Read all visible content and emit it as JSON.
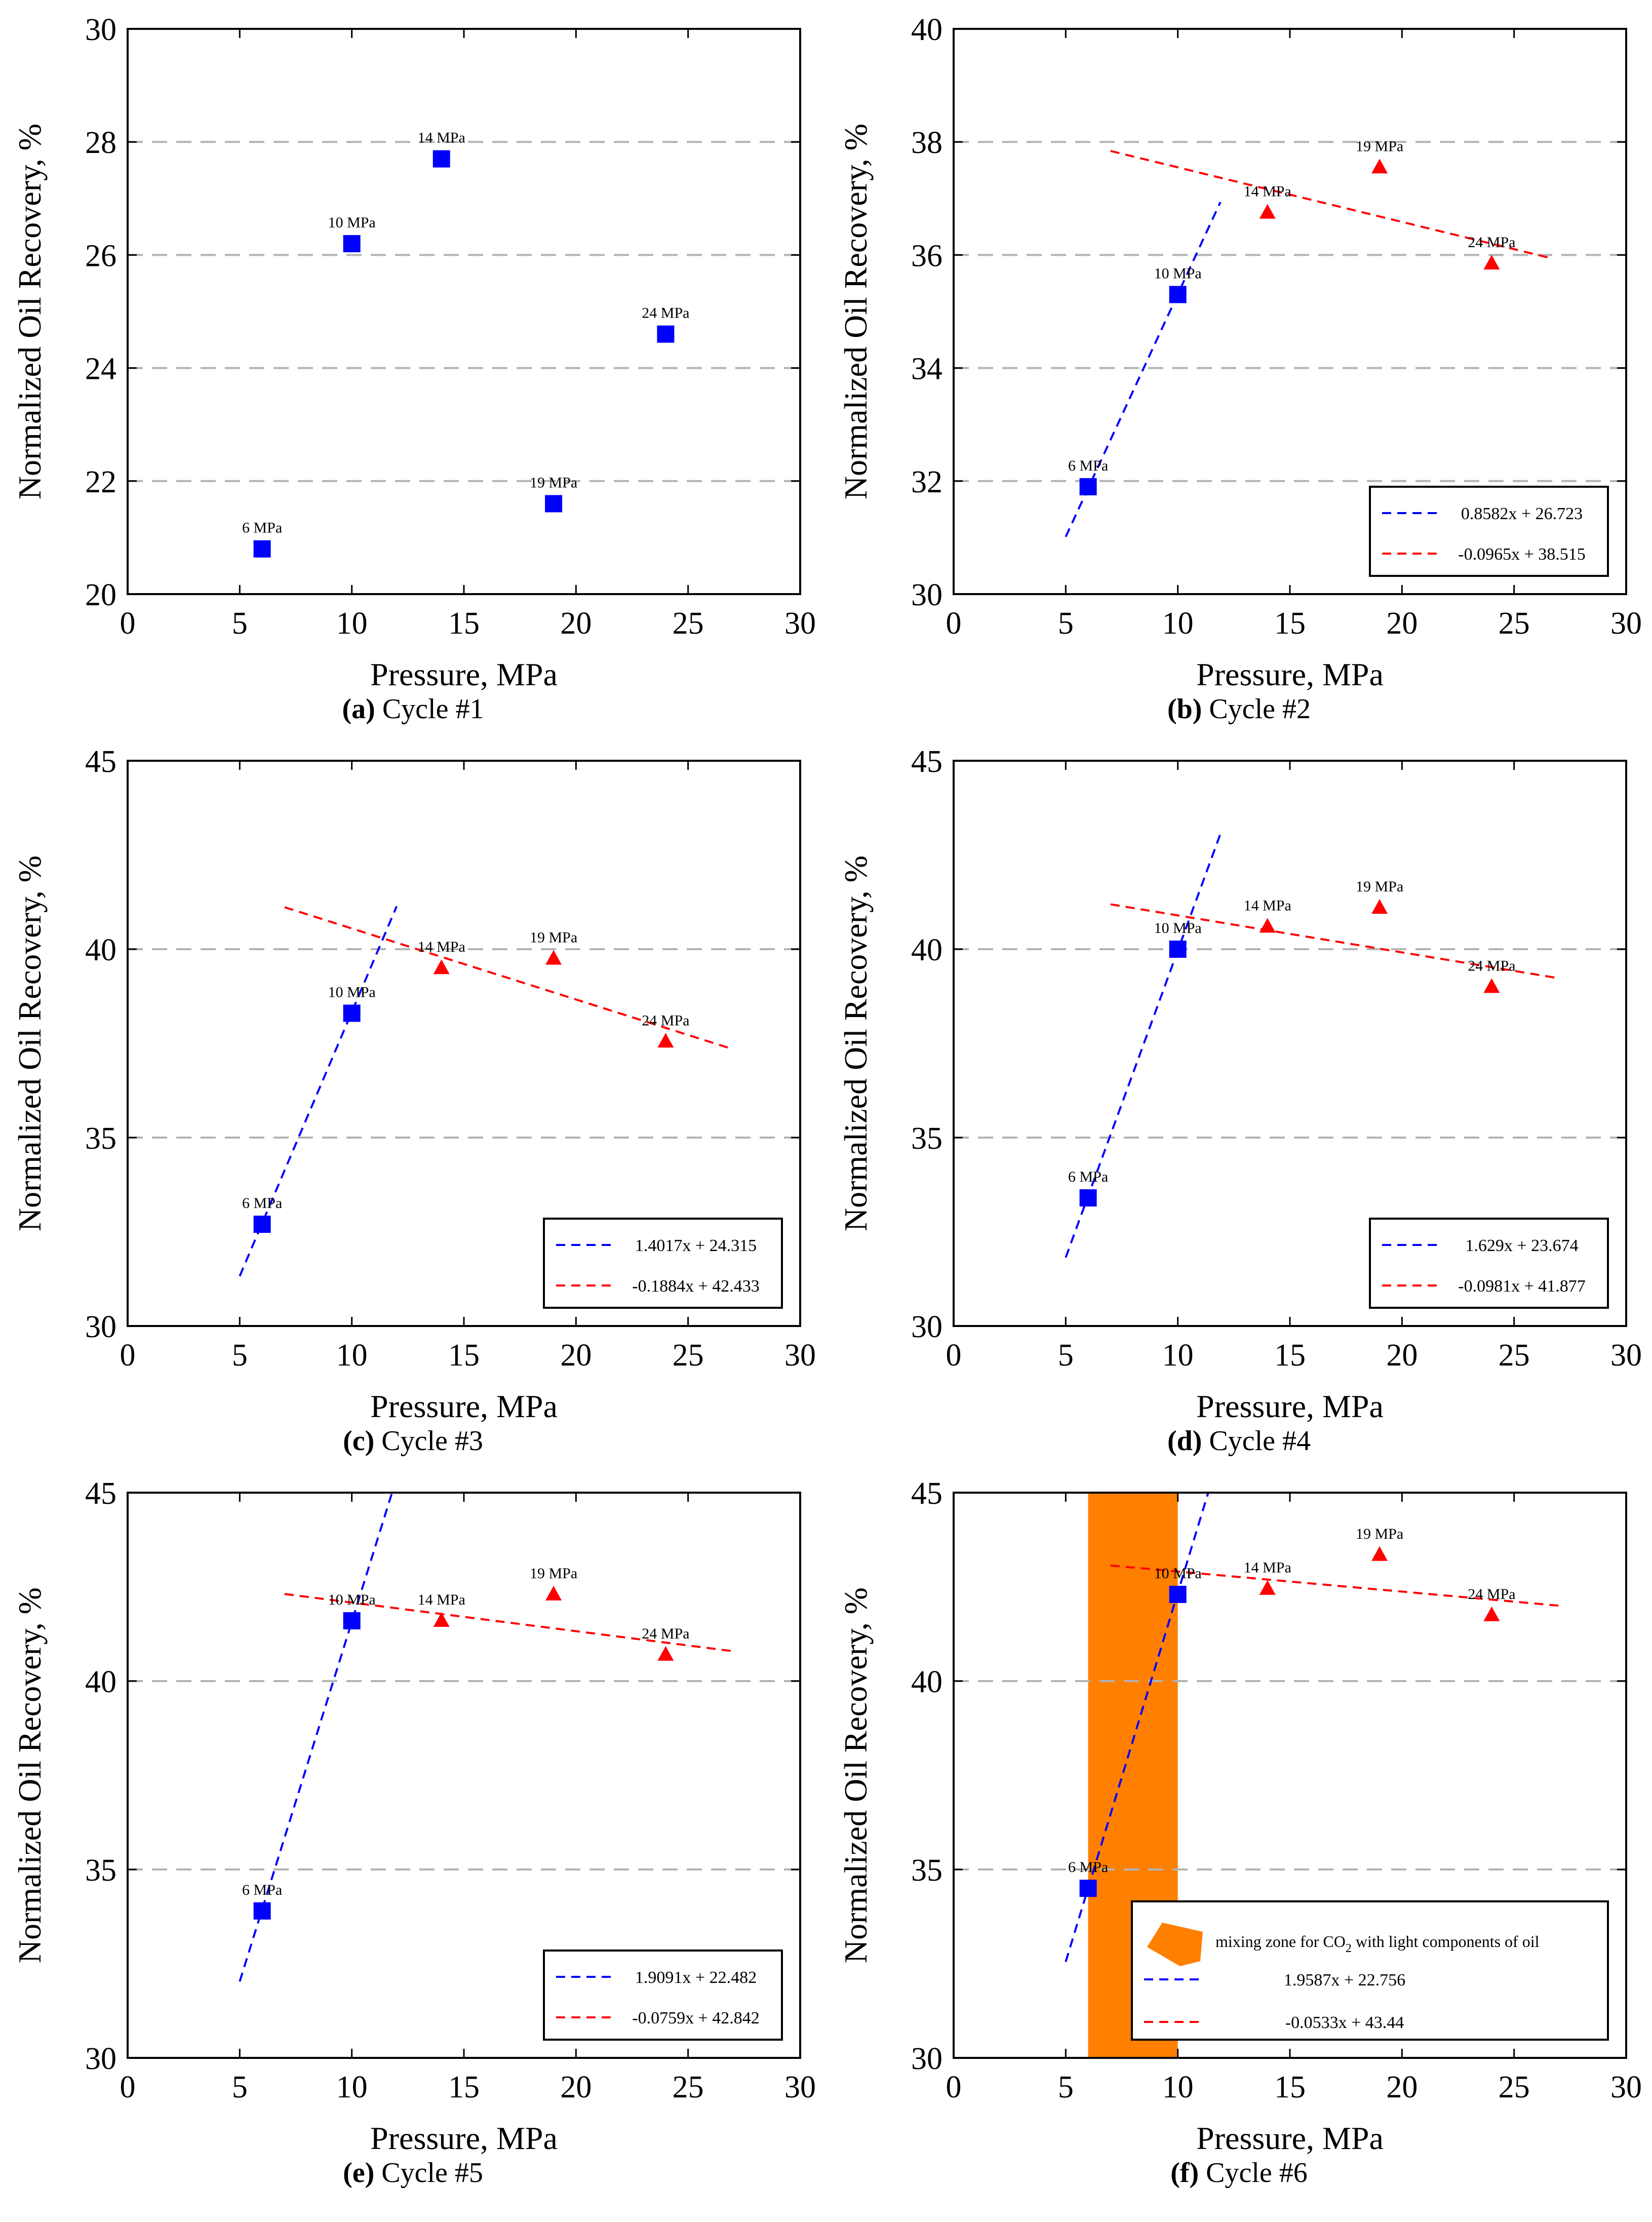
{
  "figure": {
    "colors": {
      "blue": "#0000ff",
      "red": "#ff0000",
      "orange": "#ff7f00",
      "grid": "#b3b3b3"
    }
  },
  "chart_data": [
    {
      "id": "a",
      "type": "scatter",
      "caption_letter": "(a)",
      "caption_text": "Cycle #1",
      "xlabel": "Pressure, MPa",
      "ylabel": "Normalized Oil Recovery, %",
      "xlim": [
        0,
        30
      ],
      "ylim": [
        20,
        30
      ],
      "xticks": [
        0,
        5,
        10,
        15,
        20,
        25,
        30
      ],
      "yticks": [
        20,
        22,
        24,
        26,
        28,
        30
      ],
      "grid_y": [
        22,
        24,
        26,
        28
      ],
      "points": [
        {
          "x": 6,
          "y": 20.8,
          "label": "6 MPa",
          "marker": "square",
          "color": "blue"
        },
        {
          "x": 10,
          "y": 26.2,
          "label": "10 MPa",
          "marker": "square",
          "color": "blue"
        },
        {
          "x": 14,
          "y": 27.7,
          "label": "14 MPa",
          "marker": "square",
          "color": "blue"
        },
        {
          "x": 19,
          "y": 21.6,
          "label": "19 MPa",
          "marker": "square",
          "color": "blue"
        },
        {
          "x": 24,
          "y": 24.6,
          "label": "24 MPa",
          "marker": "square",
          "color": "blue"
        }
      ],
      "trendlines": [],
      "legend": null
    },
    {
      "id": "b",
      "type": "scatter",
      "caption_letter": "(b)",
      "caption_text": "Cycle #2",
      "xlabel": "Pressure, MPa",
      "ylabel": "Normalized Oil Recovery, %",
      "xlim": [
        0,
        30
      ],
      "ylim": [
        30,
        40
      ],
      "xticks": [
        0,
        5,
        10,
        15,
        20,
        25,
        30
      ],
      "yticks": [
        30,
        32,
        34,
        36,
        38,
        40
      ],
      "grid_y": [
        32,
        34,
        36,
        38
      ],
      "points": [
        {
          "x": 6,
          "y": 31.9,
          "label": "6 MPa",
          "marker": "square",
          "color": "blue"
        },
        {
          "x": 10,
          "y": 35.3,
          "label": "10 MPa",
          "marker": "square",
          "color": "blue"
        },
        {
          "x": 14,
          "y": 36.75,
          "label": "14 MPa",
          "marker": "triangle",
          "color": "red"
        },
        {
          "x": 19,
          "y": 37.55,
          "label": "19 MPa",
          "marker": "triangle",
          "color": "red"
        },
        {
          "x": 24,
          "y": 35.85,
          "label": "24 MPa",
          "marker": "triangle",
          "color": "red"
        }
      ],
      "trendlines": [
        {
          "color": "blue",
          "slope": 0.8582,
          "intercept": 26.723,
          "x0": 5,
          "x1": 11.9
        },
        {
          "color": "red",
          "slope": -0.0965,
          "intercept": 38.515,
          "x0": 7,
          "x1": 26.7
        }
      ],
      "legend": {
        "position": "bottom-right",
        "entries": [
          {
            "color": "blue",
            "label": "0.8582x + 26.723"
          },
          {
            "color": "red",
            "label": "-0.0965x + 38.515"
          }
        ]
      }
    },
    {
      "id": "c",
      "type": "scatter",
      "caption_letter": "(c)",
      "caption_text": "Cycle #3",
      "xlabel": "Pressure, MPa",
      "ylabel": "Normalized Oil Recovery, %",
      "xlim": [
        0,
        30
      ],
      "ylim": [
        30,
        45
      ],
      "xticks": [
        0,
        5,
        10,
        15,
        20,
        25,
        30
      ],
      "yticks": [
        30,
        35,
        40,
        45
      ],
      "grid_y": [
        35,
        40
      ],
      "points": [
        {
          "x": 6,
          "y": 32.7,
          "label": "6 MPa",
          "marker": "square",
          "color": "blue"
        },
        {
          "x": 10,
          "y": 38.3,
          "label": "10 MPa",
          "marker": "square",
          "color": "blue"
        },
        {
          "x": 14,
          "y": 39.5,
          "label": "14 MPa",
          "marker": "triangle",
          "color": "red"
        },
        {
          "x": 19,
          "y": 39.75,
          "label": "19 MPa",
          "marker": "triangle",
          "color": "red"
        },
        {
          "x": 24,
          "y": 37.55,
          "label": "24 MPa",
          "marker": "triangle",
          "color": "red"
        }
      ],
      "trendlines": [
        {
          "color": "blue",
          "slope": 1.4017,
          "intercept": 24.315,
          "x0": 5,
          "x1": 12
        },
        {
          "color": "red",
          "slope": -0.1884,
          "intercept": 42.433,
          "x0": 7,
          "x1": 27
        }
      ],
      "legend": {
        "position": "bottom-right",
        "entries": [
          {
            "color": "blue",
            "label": "1.4017x + 24.315"
          },
          {
            "color": "red",
            "label": "-0.1884x + 42.433"
          }
        ]
      }
    },
    {
      "id": "d",
      "type": "scatter",
      "caption_letter": "(d)",
      "caption_text": "Cycle #4",
      "xlabel": "Pressure, MPa",
      "ylabel": "Normalized Oil Recovery, %",
      "xlim": [
        0,
        30
      ],
      "ylim": [
        30,
        45
      ],
      "xticks": [
        0,
        5,
        10,
        15,
        20,
        25,
        30
      ],
      "yticks": [
        30,
        35,
        40,
        45
      ],
      "grid_y": [
        35,
        40
      ],
      "points": [
        {
          "x": 6,
          "y": 33.4,
          "label": "6 MPa",
          "marker": "square",
          "color": "blue"
        },
        {
          "x": 10,
          "y": 40.0,
          "label": "10 MPa",
          "marker": "square",
          "color": "blue"
        },
        {
          "x": 14,
          "y": 40.6,
          "label": "14 MPa",
          "marker": "triangle",
          "color": "red"
        },
        {
          "x": 19,
          "y": 41.1,
          "label": "19 MPa",
          "marker": "triangle",
          "color": "red"
        },
        {
          "x": 24,
          "y": 39.0,
          "label": "24 MPa",
          "marker": "triangle",
          "color": "red"
        }
      ],
      "trendlines": [
        {
          "color": "blue",
          "slope": 1.629,
          "intercept": 23.674,
          "x0": 5,
          "x1": 11.9
        },
        {
          "color": "red",
          "slope": -0.0981,
          "intercept": 41.877,
          "x0": 7,
          "x1": 27
        }
      ],
      "legend": {
        "position": "bottom-right",
        "entries": [
          {
            "color": "blue",
            "label": "1.629x + 23.674"
          },
          {
            "color": "red",
            "label": "-0.0981x + 41.877"
          }
        ]
      }
    },
    {
      "id": "e",
      "type": "scatter",
      "caption_letter": "(e)",
      "caption_text": "Cycle #5",
      "xlabel": "Pressure, MPa",
      "ylabel": "Normalized Oil Recovery, %",
      "xlim": [
        0,
        30
      ],
      "ylim": [
        30,
        45
      ],
      "xticks": [
        0,
        5,
        10,
        15,
        20,
        25,
        30
      ],
      "yticks": [
        30,
        35,
        40,
        45
      ],
      "grid_y": [
        35,
        40
      ],
      "points": [
        {
          "x": 6,
          "y": 33.9,
          "label": "6 MPa",
          "marker": "square",
          "color": "blue"
        },
        {
          "x": 10,
          "y": 41.6,
          "label": "10 MPa",
          "marker": "square",
          "color": "blue"
        },
        {
          "x": 14,
          "y": 41.6,
          "label": "14 MPa",
          "marker": "triangle",
          "color": "red"
        },
        {
          "x": 19,
          "y": 42.3,
          "label": "19 MPa",
          "marker": "triangle",
          "color": "red"
        },
        {
          "x": 24,
          "y": 40.7,
          "label": "24 MPa",
          "marker": "triangle",
          "color": "red"
        }
      ],
      "trendlines": [
        {
          "color": "blue",
          "slope": 1.9091,
          "intercept": 22.482,
          "x0": 5,
          "x1": 11.8
        },
        {
          "color": "red",
          "slope": -0.0759,
          "intercept": 42.842,
          "x0": 7,
          "x1": 27
        }
      ],
      "legend": {
        "position": "bottom-right",
        "entries": [
          {
            "color": "blue",
            "label": "1.9091x + 22.482"
          },
          {
            "color": "red",
            "label": "-0.0759x + 42.842"
          }
        ]
      }
    },
    {
      "id": "f",
      "type": "scatter",
      "caption_letter": "(f)",
      "caption_text": "Cycle #6",
      "xlabel": "Pressure, MPa",
      "ylabel": "Normalized Oil Recovery, %",
      "xlim": [
        0,
        30
      ],
      "ylim": [
        30,
        45
      ],
      "xticks": [
        0,
        5,
        10,
        15,
        20,
        25,
        30
      ],
      "yticks": [
        30,
        35,
        40,
        45
      ],
      "grid_y": [
        35,
        40
      ],
      "band": {
        "x0": 6,
        "x1": 10,
        "color": "orange"
      },
      "points": [
        {
          "x": 6,
          "y": 34.5,
          "label": "6 MPa",
          "marker": "square",
          "color": "blue"
        },
        {
          "x": 10,
          "y": 42.3,
          "label": "10 MPa",
          "marker": "square",
          "color": "blue"
        },
        {
          "x": 14,
          "y": 42.45,
          "label": "14 MPa",
          "marker": "triangle",
          "color": "red"
        },
        {
          "x": 19,
          "y": 43.35,
          "label": "19 MPa",
          "marker": "triangle",
          "color": "red"
        },
        {
          "x": 24,
          "y": 41.75,
          "label": "24 MPa",
          "marker": "triangle",
          "color": "red"
        }
      ],
      "trendlines": [
        {
          "color": "blue",
          "slope": 1.9587,
          "intercept": 22.756,
          "x0": 5,
          "x1": 11.4
        },
        {
          "color": "red",
          "slope": -0.0533,
          "intercept": 43.44,
          "x0": 7,
          "x1": 27
        }
      ],
      "legend": {
        "position": "bottom-right",
        "entries": [
          {
            "color": "orange",
            "kind": "area",
            "label_pre": "mixing zone for CO",
            "label_sub": "2",
            "label_post": " with light components of oil"
          },
          {
            "color": "blue",
            "label": "1.9587x + 22.756"
          },
          {
            "color": "red",
            "label": "-0.0533x + 43.44"
          }
        ]
      }
    }
  ]
}
